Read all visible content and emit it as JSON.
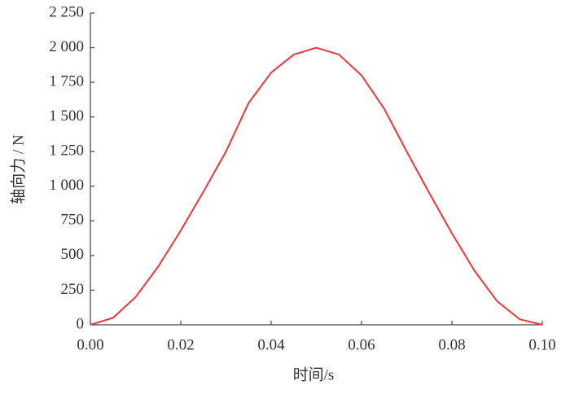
{
  "chart_data": {
    "type": "line",
    "x_label": "时间/s",
    "y_label": "轴向力 / N",
    "x": [
      0,
      0.005,
      0.01,
      0.015,
      0.02,
      0.025,
      0.03,
      0.035,
      0.04,
      0.045,
      0.05,
      0.055,
      0.06,
      0.065,
      0.07,
      0.075,
      0.08,
      0.085,
      0.09,
      0.095,
      0.1
    ],
    "series": [
      {
        "color": "#e8393a",
        "values": [
          0,
          50,
          200,
          420,
          680,
          960,
          1250,
          1600,
          1820,
          1950,
          2000,
          1950,
          1800,
          1560,
          1250,
          950,
          660,
          390,
          170,
          40,
          0
        ]
      }
    ],
    "xlim": [
      0,
      0.1
    ],
    "xticks": [
      {
        "value": 0,
        "label": "0.00"
      },
      {
        "value": 0.02,
        "label": "0.02"
      },
      {
        "value": 0.04,
        "label": "0.04"
      },
      {
        "value": 0.06,
        "label": "0.06"
      },
      {
        "value": 0.08,
        "label": "0.08"
      },
      {
        "value": 0.1,
        "label": "0.10"
      }
    ],
    "ylim": [
      0,
      2250
    ],
    "yticks": [
      0,
      250,
      500,
      750,
      {
        "value": 1000,
        "label": "1 000"
      },
      {
        "value": 1250,
        "label": "1 250"
      },
      {
        "value": 1500,
        "label": "1 500"
      },
      {
        "value": 1750,
        "label": "1 750"
      },
      {
        "value": 2000,
        "label": "2 000"
      },
      {
        "value": 2250,
        "label": "2 250"
      }
    ],
    "grid": false
  }
}
